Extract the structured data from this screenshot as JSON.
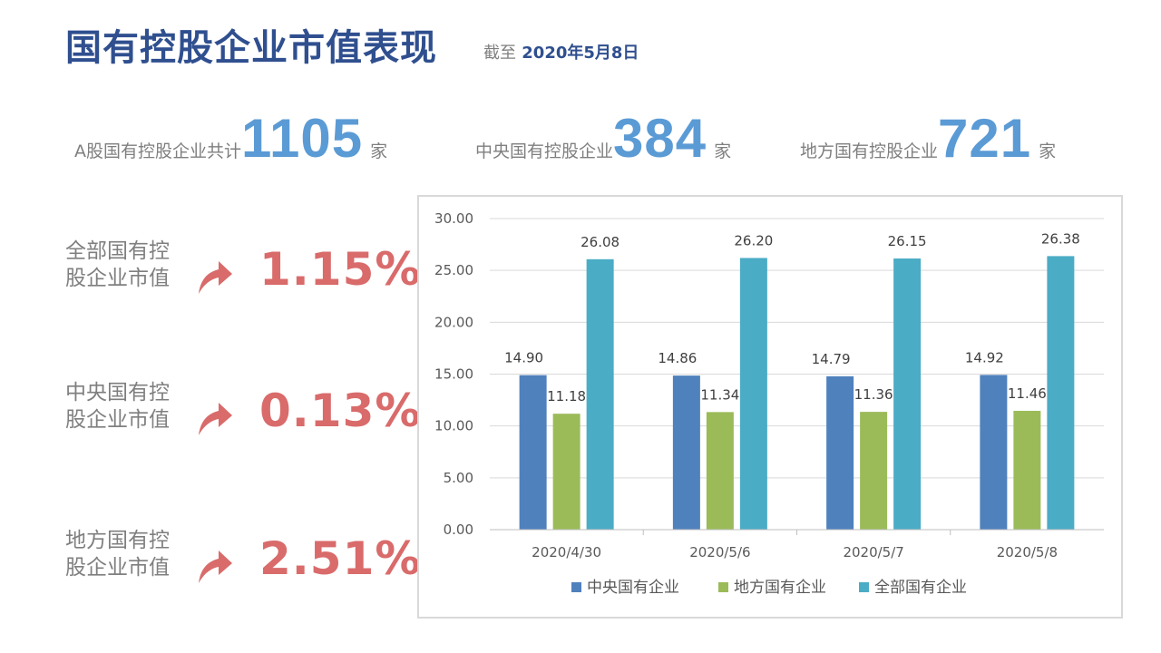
{
  "header": {
    "title": "国有控股企业市值表现",
    "asof_prefix": "截至",
    "asof_date": "2020年5月8日"
  },
  "stats": [
    {
      "label": "A股国有控股企业共计",
      "value": "1105",
      "unit": "家"
    },
    {
      "label": "中央国有控股企业",
      "value": "384",
      "unit": "家"
    },
    {
      "label": "地方国有控股企业",
      "value": "721",
      "unit": "家"
    }
  ],
  "metrics": [
    {
      "label_line1": "全部国有控",
      "label_line2": "股企业市值",
      "value": "1.15%",
      "icon": "up-arrow-icon"
    },
    {
      "label_line1": "中央国有控",
      "label_line2": "股企业市值",
      "value": "0.13%",
      "icon": "up-arrow-icon"
    },
    {
      "label_line1": "地方国有控",
      "label_line2": "股企业市值",
      "value": "2.51%",
      "icon": "up-arrow-icon"
    }
  ],
  "colors": {
    "title": "#2F4F8F",
    "stat_number": "#5B9BD5",
    "metric_value": "#D96B6B",
    "series_central": "#4F81BD",
    "series_local": "#9BBB59",
    "series_total": "#4BACC6"
  },
  "chart_data": {
    "type": "bar",
    "categories": [
      "2020/4/30",
      "2020/5/6",
      "2020/5/7",
      "2020/5/8"
    ],
    "series": [
      {
        "name": "中央国有企业",
        "values": [
          14.9,
          14.86,
          14.79,
          14.92
        ],
        "labels": [
          "14.90",
          "14.86",
          "14.79",
          "14.92"
        ]
      },
      {
        "name": "地方国有企业",
        "values": [
          11.18,
          11.34,
          11.36,
          11.46
        ],
        "labels": [
          "11.18",
          "11.34",
          "11.36",
          "11.46"
        ]
      },
      {
        "name": "全部国有企业",
        "values": [
          26.08,
          26.2,
          26.15,
          26.38
        ],
        "labels": [
          "26.08",
          "26.20",
          "26.15",
          "26.38"
        ]
      }
    ],
    "yticks": [
      "0.00",
      "5.00",
      "10.00",
      "15.00",
      "20.00",
      "25.00",
      "30.00"
    ],
    "ylim": [
      0,
      30
    ],
    "grid": true,
    "legend_position": "bottom"
  }
}
